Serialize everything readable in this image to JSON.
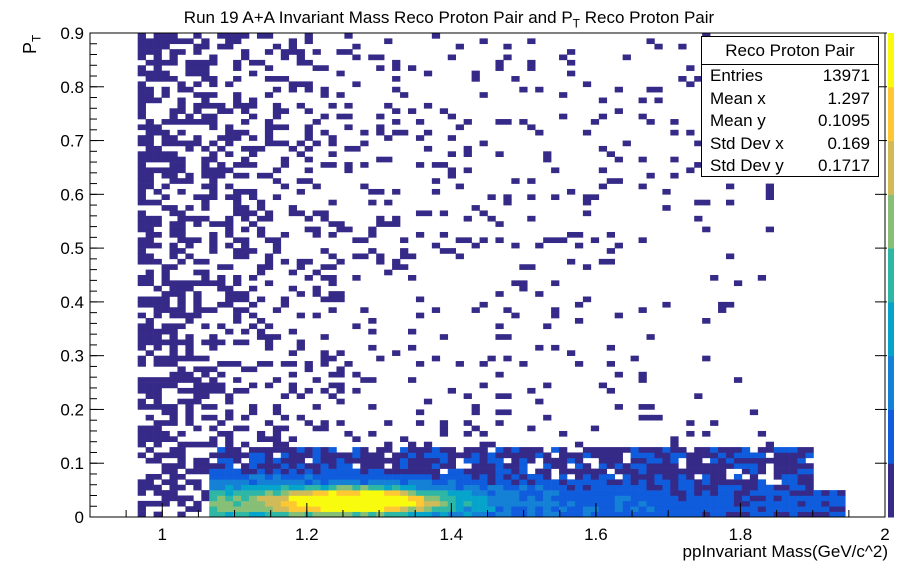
{
  "chart_data": {
    "type": "heatmap",
    "title_main": "Run 19 A+A Invariant Mass Reco Proton Pair and P",
    "title_sub": "T",
    "title_tail": " Reco Proton Pair",
    "ylabel_main": "P",
    "ylabel_sub": "T",
    "xlabel": "ppInvariant Mass(GeV/c^2)",
    "xlim": [
      0.9,
      2.0
    ],
    "ylim": [
      0,
      0.9
    ],
    "x_ticks": [
      "1",
      "1.2",
      "1.4",
      "1.6",
      "1.8",
      "2"
    ],
    "y_ticks": [
      "0",
      "0.1",
      "0.2",
      "0.3",
      "0.4",
      "0.5",
      "0.6",
      "0.7",
      "0.8",
      "0.9"
    ],
    "bins": {
      "nx": 100,
      "ny": 90
    },
    "colormap": [
      "#352a87",
      "#0f5cdd",
      "#1481d6",
      "#06a4ca",
      "#2eb7a4",
      "#87bf77",
      "#d1bb59",
      "#fec832",
      "#f9fb0e"
    ],
    "distribution": {
      "description_free": true,
      "core_peak": {
        "x": 1.27,
        "y": 0.03
      },
      "x_range_main": [
        1.06,
        1.95
      ],
      "y_dense_max": 0.12
    },
    "legend_position": "top-right",
    "grid": false
  },
  "stats": {
    "title": "Reco Proton Pair",
    "rows": [
      {
        "label": "Entries",
        "value": "13971"
      },
      {
        "label": "Mean x",
        "value": "1.297"
      },
      {
        "label": "Mean y",
        "value": "0.1095"
      },
      {
        "label": "Std Dev x",
        "value": "0.169"
      },
      {
        "label": "Std Dev y",
        "value": "0.1717"
      }
    ]
  }
}
